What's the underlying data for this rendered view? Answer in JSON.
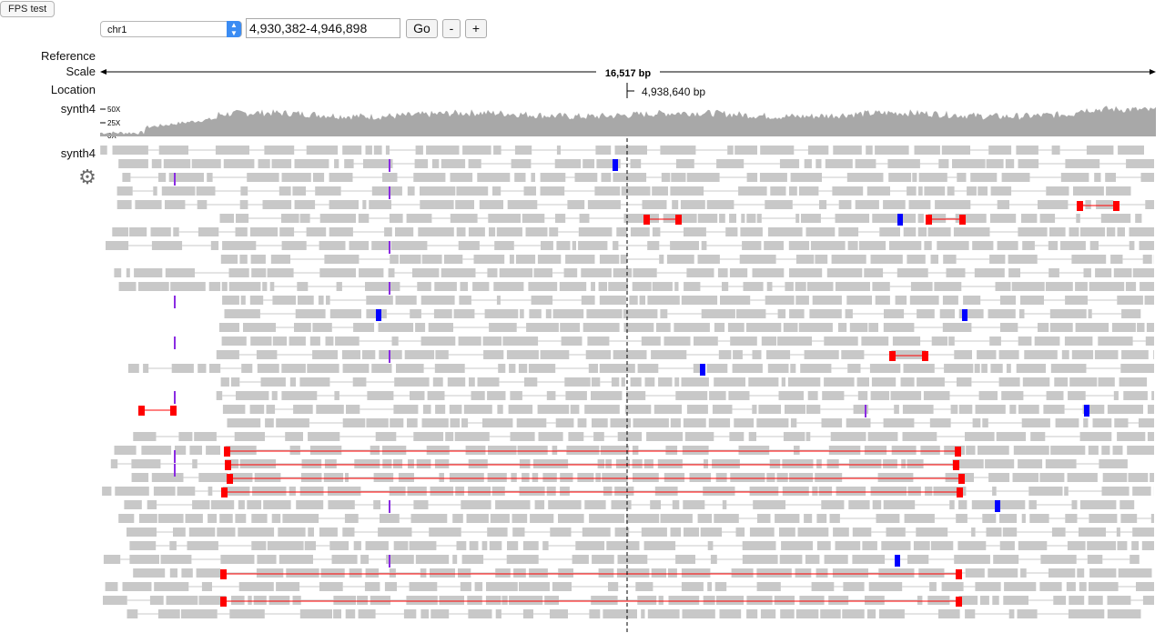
{
  "toolbar": {
    "fps_label": "FPS test",
    "chromosome": "chr1",
    "locus": "4,930,382-4,946,898",
    "go_label": "Go",
    "zoom_out_label": "-",
    "zoom_in_label": "+"
  },
  "tracks": {
    "reference_label": "Reference",
    "scale_label": "Scale",
    "scale_text": "16,517 bp",
    "location_label": "Location",
    "location_text": "4,938,640 bp",
    "coverage_label": "synth4",
    "coverage_ticks": [
      "50X",
      "25X",
      "0X"
    ],
    "alignment_label": "synth4"
  },
  "colors": {
    "read": "#c8c8c8",
    "split_read": "#ff0000",
    "mismatch_blue": "#0000ff",
    "insertion_purple": "#8a2be2",
    "coverage": "#a8a8a8"
  },
  "icons": {
    "settings": "gear-icon"
  }
}
